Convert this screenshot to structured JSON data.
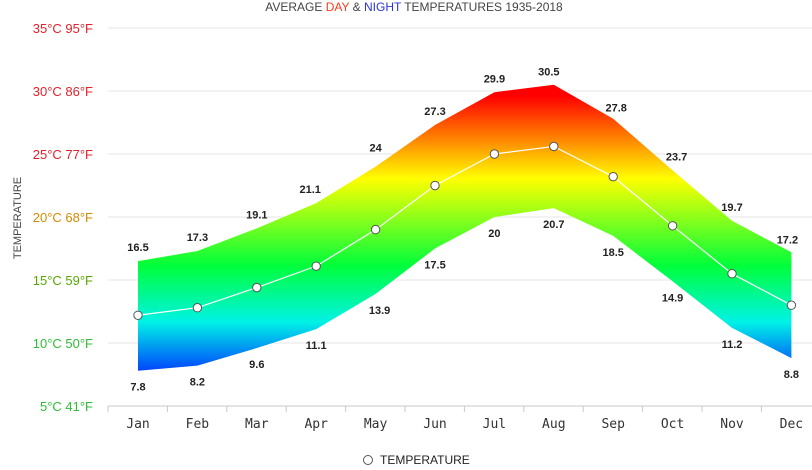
{
  "chart_data": {
    "type": "area",
    "title": {
      "prefix": "AVERAGE ",
      "day": "DAY",
      "amp": " & ",
      "night": "NIGHT",
      "suffix": " TEMPERATURES 1935-2018"
    },
    "ylabel": "TEMPERATURE",
    "xlabel": "",
    "categories": [
      "Jan",
      "Feb",
      "Mar",
      "Apr",
      "May",
      "Jun",
      "Jul",
      "Aug",
      "Sep",
      "Oct",
      "Nov",
      "Dec"
    ],
    "ylim": [
      5,
      35
    ],
    "yticks": [
      {
        "value": 35,
        "label": "35°C 95°F"
      },
      {
        "value": 30,
        "label": "30°C 86°F"
      },
      {
        "value": 25,
        "label": "25°C 77°F"
      },
      {
        "value": 20,
        "label": "20°C 68°F"
      },
      {
        "value": 15,
        "label": "15°C 59°F"
      },
      {
        "value": 10,
        "label": "10°C 50°F"
      },
      {
        "value": 5,
        "label": "5°C 41°F"
      }
    ],
    "day": [
      16.5,
      17.3,
      19.1,
      21.1,
      24,
      27.3,
      29.9,
      30.5,
      27.8,
      23.7,
      19.7,
      17.2
    ],
    "night": [
      7.8,
      8.2,
      9.6,
      11.1,
      13.9,
      17.5,
      20,
      20.7,
      18.5,
      14.9,
      11.2,
      8.8
    ],
    "series": [
      {
        "name": "TEMPERATURE",
        "values": [
          12.2,
          12.8,
          14.4,
          16.1,
          19,
          22.5,
          25,
          25.6,
          23.2,
          19.3,
          15.5,
          13
        ]
      }
    ],
    "legend": "bottom-center",
    "grid": true,
    "colors": {
      "day_title": "#ff3a1f",
      "night_title": "#2c35d9",
      "hot_tick": "#e4202c",
      "warm_tick": "#d48900",
      "mild_tick": "#56a800",
      "cool_tick": "#2fbe34",
      "gradient": [
        "#0029ff",
        "#00f2e6",
        "#00ff3a",
        "#ffff00",
        "#ff0000"
      ],
      "line": "#ffffff",
      "grid": "#e6e6e6"
    }
  }
}
